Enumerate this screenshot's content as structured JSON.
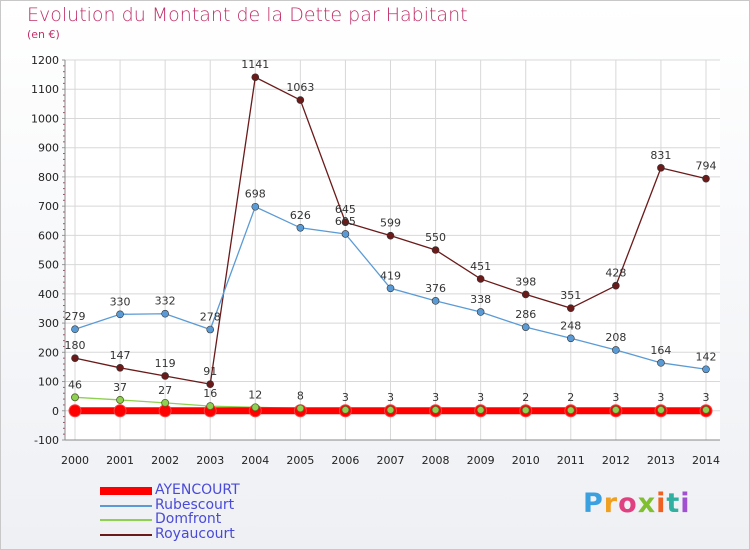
{
  "title": "Evolution du Montant de la Dette par Habitant",
  "subtitle": "(en €)",
  "logo": {
    "text": "Proxiti"
  },
  "chart_data": {
    "type": "line",
    "x": [
      "2000",
      "2001",
      "2002",
      "2003",
      "2004",
      "2005",
      "2006",
      "2007",
      "2008",
      "2009",
      "2010",
      "2011",
      "2012",
      "2013",
      "2014"
    ],
    "ylim": [
      -100,
      1200
    ],
    "yticks": [
      "1200",
      "1100",
      "1000",
      "900",
      "800",
      "700",
      "600",
      "500",
      "400",
      "300",
      "200",
      "100",
      "0",
      "-100"
    ],
    "grid": true,
    "legend": "bottom-left",
    "series": [
      {
        "name": "AYENCOURT",
        "color": "#ff0000",
        "values": [
          0,
          0,
          0,
          0,
          0,
          0,
          0,
          0,
          0,
          0,
          0,
          0,
          0,
          0,
          0
        ]
      },
      {
        "name": "Rubescourt",
        "color": "#5b9bd5",
        "values": [
          279,
          330,
          332,
          278,
          698,
          626,
          605,
          419,
          376,
          338,
          286,
          248,
          208,
          164,
          142
        ]
      },
      {
        "name": "Domfront",
        "color": "#8ed050",
        "values": [
          46,
          37,
          27,
          16,
          12,
          8,
          3,
          3,
          3,
          3,
          2,
          2,
          3,
          3,
          3
        ]
      },
      {
        "name": "Royaucourt",
        "color": "#6b1a1a",
        "values": [
          180,
          147,
          119,
          91,
          1141,
          1063,
          645,
          599,
          550,
          451,
          398,
          351,
          428,
          831,
          794
        ]
      }
    ]
  }
}
